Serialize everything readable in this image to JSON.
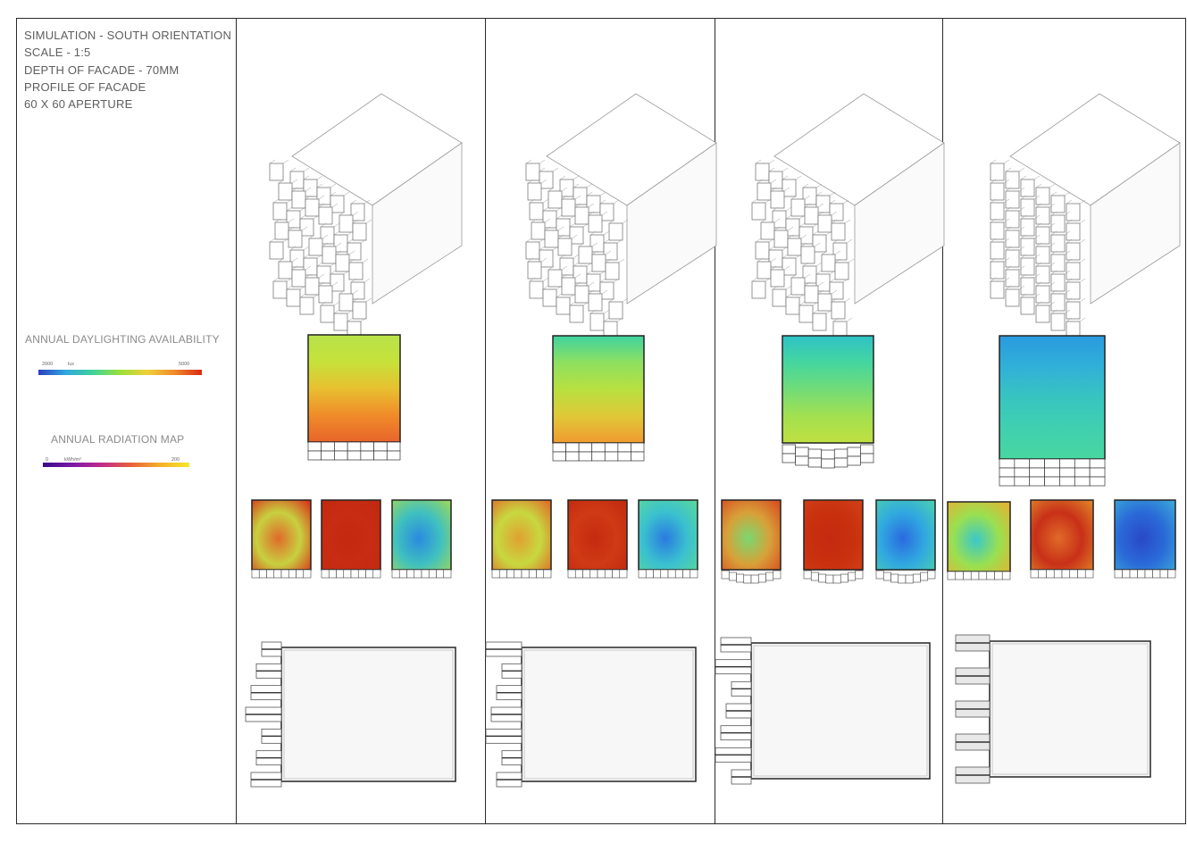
{
  "spec_lines": [
    "SIMULATION - SOUTH ORIENTATION",
    "SCALE  - 1:5",
    "DEPTH OF FACADE -  70MM",
    "PROFILE OF FACADE",
    "60 X 60 APERTURE"
  ],
  "daylight_legend": {
    "title": "ANNUAL DAYLIGHTING AVAILABILITY",
    "min_label": "2000",
    "unit_label": "lux",
    "max_label": "5000",
    "gradient": [
      "#2b3fbf",
      "#2fa7e0",
      "#3fd39a",
      "#9be03a",
      "#f0d03a",
      "#f08a2a",
      "#d82a14"
    ]
  },
  "radiation_legend": {
    "title": "ANNUAL RADIATION MAP",
    "min_label": "0",
    "unit_label": "kWh/m²",
    "max_label": "200",
    "gradient": [
      "#3a0a8a",
      "#7a1aa8",
      "#c02a8a",
      "#e8603a",
      "#f5b02a",
      "#f5e82a"
    ]
  },
  "variants": [
    {
      "id": "1",
      "daylight": [
        "#b7e24a",
        "#c6e23a",
        "#e8c030",
        "#f08c2a",
        "#e8642a"
      ],
      "maps": [
        [
          "#e06a2a",
          "#c8d040",
          "#d83018"
        ],
        [
          "#c42a10",
          "#c82c12",
          "#c02a10"
        ],
        [
          "#2a8ae0",
          "#3fc0c0",
          "#9cd85a"
        ]
      ]
    },
    {
      "id": "2",
      "daylight": [
        "#3fd3a0",
        "#8ee060",
        "#b8e040",
        "#e0c838",
        "#f09a30"
      ],
      "maps": [
        [
          "#e0a030",
          "#c8d840",
          "#e06a28"
        ],
        [
          "#c42a10",
          "#d03a14",
          "#c02a10"
        ],
        [
          "#2a7ae0",
          "#3ac0d0",
          "#5ad89a"
        ]
      ]
    },
    {
      "id": "3",
      "daylight": [
        "#2ec2c8",
        "#45d6a0",
        "#72dc78",
        "#a2e050",
        "#c0e040"
      ],
      "maps": [
        [
          "#7ad870",
          "#d8a038",
          "#d84a20"
        ],
        [
          "#c42a10",
          "#c8300e",
          "#d04016"
        ],
        [
          "#2a6ae0",
          "#30a8e0",
          "#4ad0b0"
        ]
      ]
    },
    {
      "id": "4",
      "daylight": [
        "#2a9ae0",
        "#30b0d8",
        "#38c4c0",
        "#40d0b0",
        "#48d6a0"
      ],
      "maps": [
        [
          "#3ac8c8",
          "#9ae050",
          "#e8b030"
        ],
        [
          "#e06a28",
          "#c83018",
          "#e0842a"
        ],
        [
          "#2a48c8",
          "#2a6ad8",
          "#3aa8d8"
        ]
      ]
    }
  ]
}
